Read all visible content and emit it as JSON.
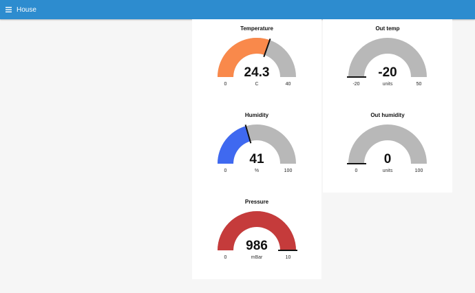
{
  "app": {
    "title": "House",
    "menu_icon": "hamburger-menu-icon",
    "accent": "#2d8ccf"
  },
  "gauges": [
    {
      "id": "temperature",
      "title": "Temperature",
      "value": 24.3,
      "display": "24.3",
      "units": "C",
      "min": 0,
      "max": 40,
      "min_label": "0",
      "max_label": "40",
      "color": "#f9894b"
    },
    {
      "id": "out-temp",
      "title": "Out temp",
      "value": -20,
      "display": "-20",
      "units": "units",
      "min": -20,
      "max": 50,
      "min_label": "-20",
      "max_label": "50",
      "color": "#f9894b"
    },
    {
      "id": "humidity",
      "title": "Humidity",
      "value": 41,
      "display": "41",
      "units": "%",
      "min": 0,
      "max": 100,
      "min_label": "0",
      "max_label": "100",
      "color": "#3f69f0"
    },
    {
      "id": "out-humidity",
      "title": "Out humidity",
      "value": 0,
      "display": "0",
      "units": "units",
      "min": 0,
      "max": 100,
      "min_label": "0",
      "max_label": "100",
      "color": "#3f69f0"
    },
    {
      "id": "pressure",
      "title": "Pressure",
      "value": 986,
      "display": "986",
      "units": "mBar",
      "min": 0,
      "max": 10,
      "min_label": "0",
      "max_label": "10",
      "color": "#c53b3b"
    }
  ],
  "track_color": "#b8b8b8"
}
